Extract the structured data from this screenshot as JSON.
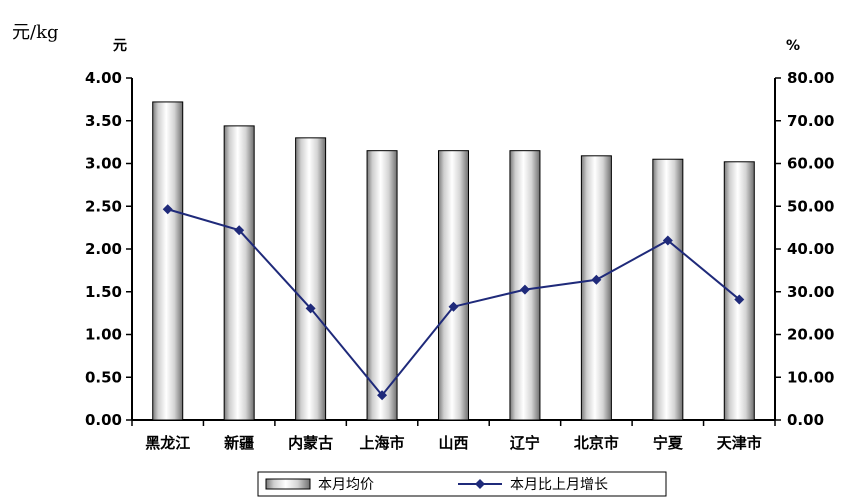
{
  "unit_label": "元/kg",
  "chart_data": {
    "type": "bar",
    "categories": [
      "黑龙江",
      "新疆",
      "内蒙古",
      "上海市",
      "山西",
      "辽宁",
      "北京市",
      "宁夏",
      "天津市"
    ],
    "left_axis": {
      "unit": "元",
      "ylim": [
        0,
        4
      ],
      "ticks": [
        "0.00",
        "0.50",
        "1.00",
        "1.50",
        "2.00",
        "2.50",
        "3.00",
        "3.50",
        "4.00"
      ]
    },
    "right_axis": {
      "unit": "%",
      "ylim": [
        0,
        80
      ],
      "ticks": [
        "0.00",
        "10.00",
        "20.00",
        "30.00",
        "40.00",
        "50.00",
        "60.00",
        "70.00",
        "80.00"
      ]
    },
    "series": [
      {
        "name": "本月均价",
        "kind": "bar",
        "axis": "left",
        "values": [
          3.72,
          3.44,
          3.3,
          3.15,
          3.15,
          3.15,
          3.09,
          3.05,
          3.02
        ]
      },
      {
        "name": "本月比上月增长",
        "kind": "line",
        "axis": "right",
        "color": "#1f2a7a",
        "values": [
          49.3,
          44.4,
          26.1,
          5.8,
          26.5,
          30.5,
          32.8,
          42.0,
          28.2
        ]
      }
    ],
    "grid": false,
    "legend": "bottom"
  }
}
